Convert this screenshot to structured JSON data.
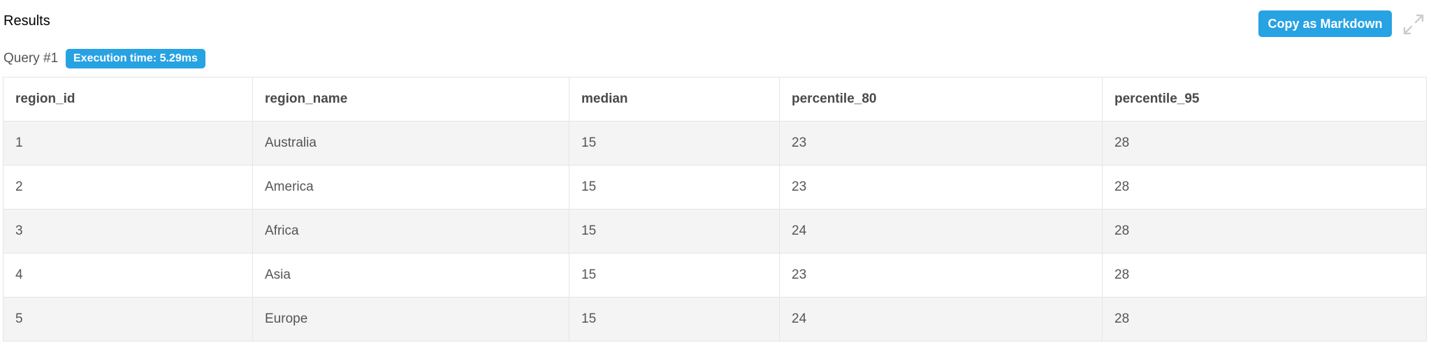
{
  "header": {
    "title": "Results",
    "copy_button_label": "Copy as Markdown",
    "expand_icon": "expand-icon"
  },
  "query": {
    "label": "Query #1",
    "execution_time": "Execution time: 5.29ms"
  },
  "table": {
    "columns": [
      "region_id",
      "region_name",
      "median",
      "percentile_80",
      "percentile_95"
    ],
    "rows": [
      [
        "1",
        "Australia",
        "15",
        "23",
        "28"
      ],
      [
        "2",
        "America",
        "15",
        "23",
        "28"
      ],
      [
        "3",
        "Africa",
        "15",
        "24",
        "28"
      ],
      [
        "4",
        "Asia",
        "15",
        "23",
        "28"
      ],
      [
        "5",
        "Europe",
        "15",
        "24",
        "28"
      ]
    ]
  },
  "colors": {
    "accent": "#27a2e3",
    "row_stripe": "#f4f4f4",
    "border": "#e5e5e5",
    "icon": "#cccccc"
  }
}
